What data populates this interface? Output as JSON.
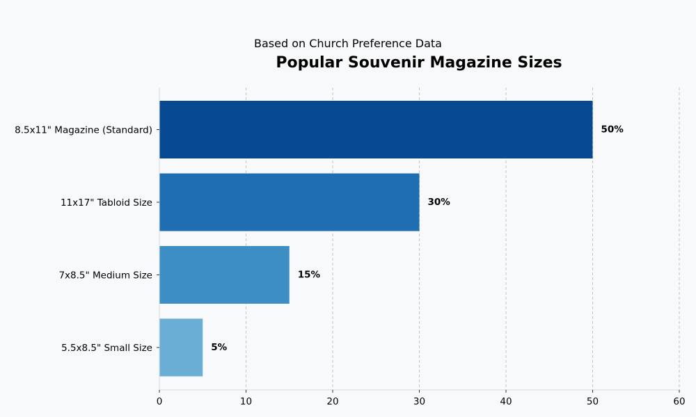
{
  "chart_data": {
    "type": "bar",
    "orientation": "horizontal",
    "subtitle": "Based on Church Preference Data",
    "title": "Popular Souvenir Magazine Sizes",
    "xlabel": "",
    "ylabel": "",
    "categories": [
      "8.5x11\" Magazine (Standard)",
      "11x17\" Tabloid Size",
      "7x8.5\" Medium Size",
      "5.5x8.5\" Small Size"
    ],
    "values": [
      50,
      30,
      15,
      5
    ],
    "data_labels": [
      "50%",
      "30%",
      "15%",
      "5%"
    ],
    "colors": [
      "#084a91",
      "#1f6eb2",
      "#3e8ec6",
      "#6aaed6"
    ],
    "xlim": [
      0,
      60
    ],
    "xticks": [
      0,
      10,
      20,
      30,
      40,
      50,
      60
    ],
    "xtick_labels": [
      "0",
      "10",
      "20",
      "30",
      "40",
      "50",
      "60"
    ],
    "grid": "vertical dashed",
    "legend": "none"
  }
}
